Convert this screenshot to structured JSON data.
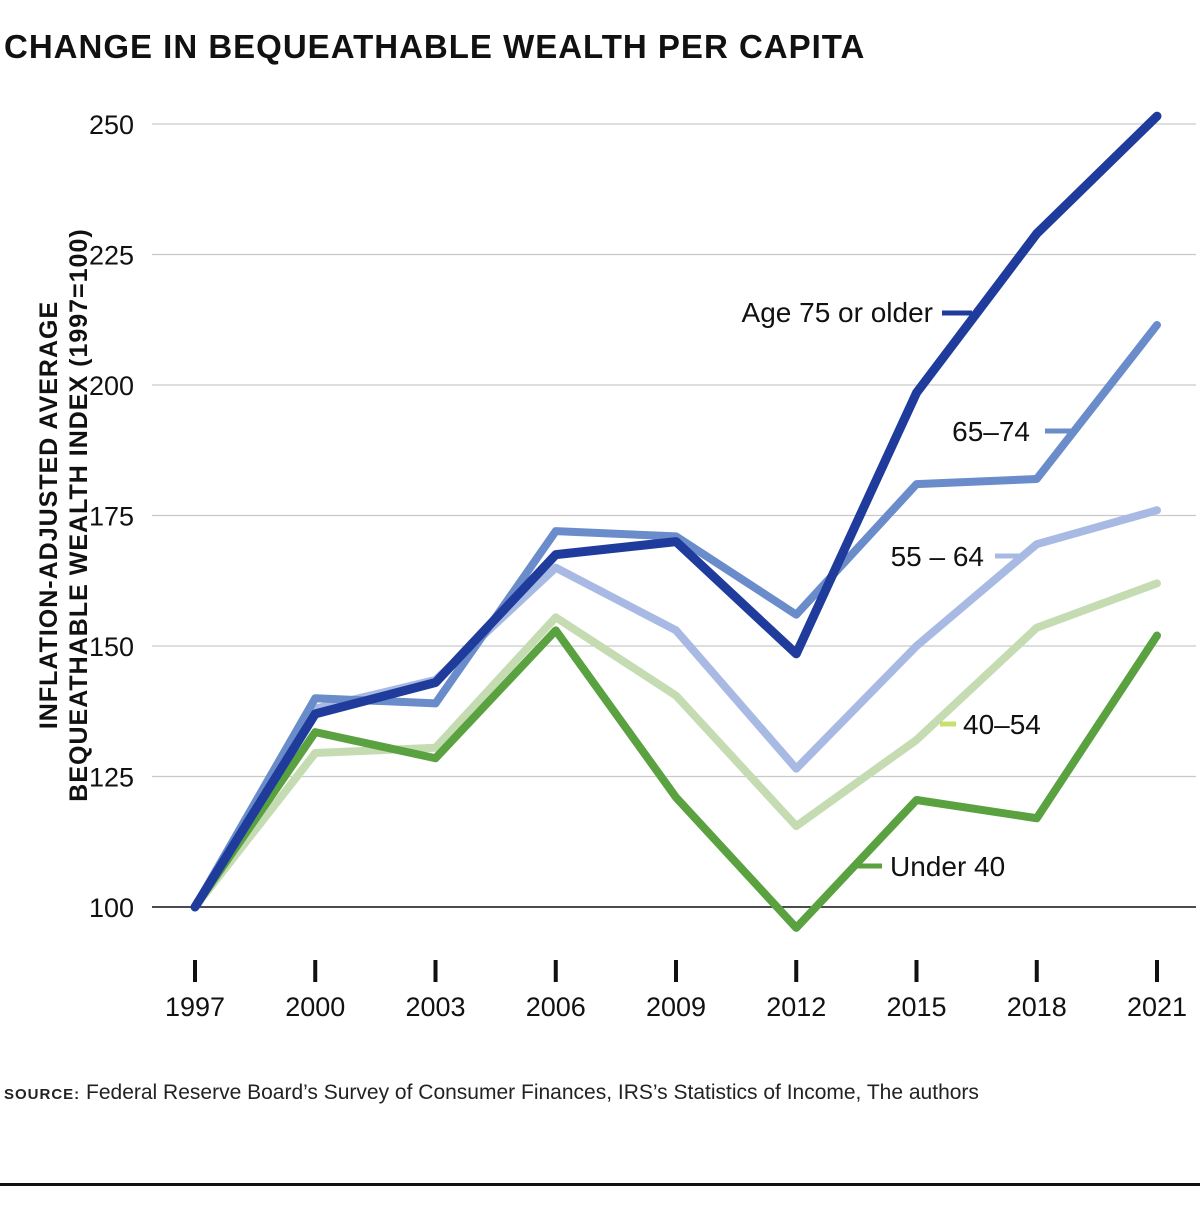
{
  "chart_data": {
    "type": "line",
    "title": "CHANGE IN BEQUEATHABLE WEALTH PER CAPITA",
    "ylabel_lines": [
      "INFLATION-ADJUSTED AVERAGE",
      "BEQUEATHABLE WEALTH INDEX (1997=100)"
    ],
    "xlabel": "",
    "x": [
      "1997",
      "2000",
      "2003",
      "2006",
      "2009",
      "2012",
      "2015",
      "2018",
      "2021"
    ],
    "y_ticks": [
      100,
      125,
      150,
      175,
      200,
      225,
      250
    ],
    "ylim": [
      95,
      255
    ],
    "grid": true,
    "series": [
      {
        "name": "Under 40",
        "color": "#5aa140",
        "values": [
          100,
          133.5,
          128.5,
          153,
          121,
          96,
          120.5,
          117,
          152
        ]
      },
      {
        "name": "40–54",
        "color": "#c5dcb3",
        "marker_color": "#c8e06e",
        "values": [
          100,
          129.5,
          130.5,
          155.5,
          140.5,
          115.5,
          132,
          153.5,
          162
        ]
      },
      {
        "name": "55 – 64",
        "color": "#a8bae3",
        "values": [
          100,
          138,
          143.5,
          165,
          153,
          126.5,
          150,
          169.5,
          176
        ]
      },
      {
        "name": "65–74",
        "color": "#6b8ccb",
        "values": [
          100,
          140,
          139,
          172,
          171,
          156,
          181,
          182,
          211.5
        ]
      },
      {
        "name": "Age 75 or older",
        "color": "#1f3c9c",
        "values": [
          100,
          137,
          143,
          167.5,
          170,
          148.5,
          198.5,
          229,
          251.5
        ]
      }
    ],
    "legend": [
      {
        "label": "Age 75 or older",
        "series": "Age 75 or older",
        "placement": "right-of-line"
      },
      {
        "label": "65–74",
        "series": "65–74",
        "placement": "right-of-line"
      },
      {
        "label": "55 – 64",
        "series": "55 – 64",
        "placement": "right-of-line"
      },
      {
        "label": "40–54",
        "series": "40–54",
        "placement": "below-line"
      },
      {
        "label": "Under 40",
        "series": "Under 40",
        "placement": "below-line"
      }
    ]
  },
  "source": {
    "key": "SOURCE:",
    "text": "Federal Reserve Board’s Survey of Consumer Finances, IRS’s Statistics of Income, The authors"
  }
}
